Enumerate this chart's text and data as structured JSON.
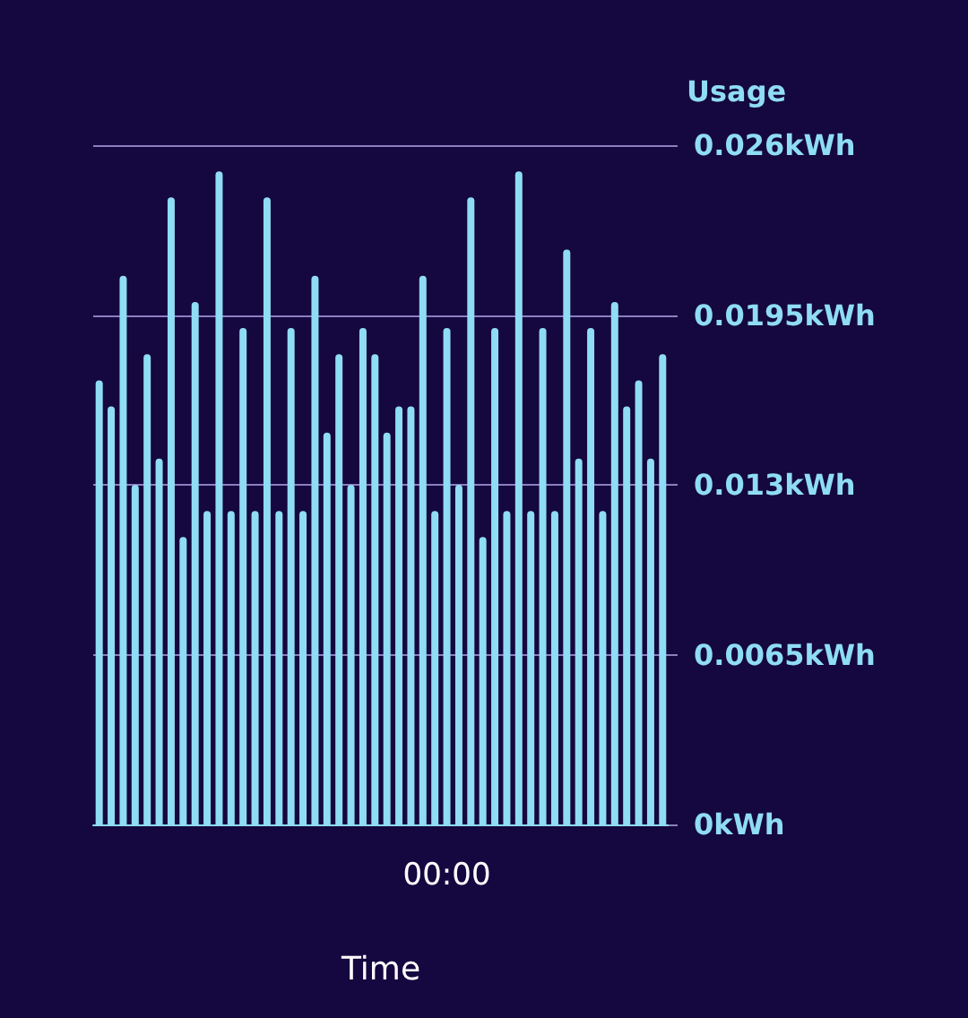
{
  "chart_data": {
    "type": "bar",
    "xlabel": "Time",
    "ylabel": "Usage",
    "categories": [
      null,
      null,
      null,
      null,
      null,
      null,
      null,
      null,
      null,
      null,
      null,
      null,
      null,
      null,
      null,
      null,
      null,
      null,
      null,
      null,
      null,
      null,
      null,
      null,
      null,
      null,
      null,
      null,
      null,
      "00:00",
      null,
      null,
      null,
      null,
      null,
      null,
      null,
      null,
      null,
      null,
      null,
      null,
      null,
      null,
      null,
      null,
      null,
      null
    ],
    "values": [
      0.017,
      0.016,
      0.021,
      0.013,
      0.018,
      0.014,
      0.024,
      0.011,
      0.02,
      0.012,
      0.025,
      0.012,
      0.019,
      0.012,
      0.024,
      0.012,
      0.019,
      0.012,
      0.021,
      0.015,
      0.018,
      0.013,
      0.019,
      0.018,
      0.015,
      0.016,
      0.016,
      0.021,
      0.012,
      0.019,
      0.013,
      0.024,
      0.011,
      0.019,
      0.012,
      0.025,
      0.012,
      0.019,
      0.012,
      0.022,
      0.014,
      0.019,
      0.012,
      0.02,
      0.016,
      0.017,
      0.014,
      0.018
    ],
    "color": "#8fdcf5",
    "ylim": [
      0,
      0.026
    ],
    "yticks": [
      {
        "value": 0,
        "label": "0kWh"
      },
      {
        "value": 0.0065,
        "label": "0.0065kWh"
      },
      {
        "value": 0.013,
        "label": "0.013kWh"
      },
      {
        "value": 0.0195,
        "label": "0.0195kWh"
      },
      {
        "value": 0.026,
        "label": "0.026kWh"
      }
    ],
    "grid": "y"
  }
}
